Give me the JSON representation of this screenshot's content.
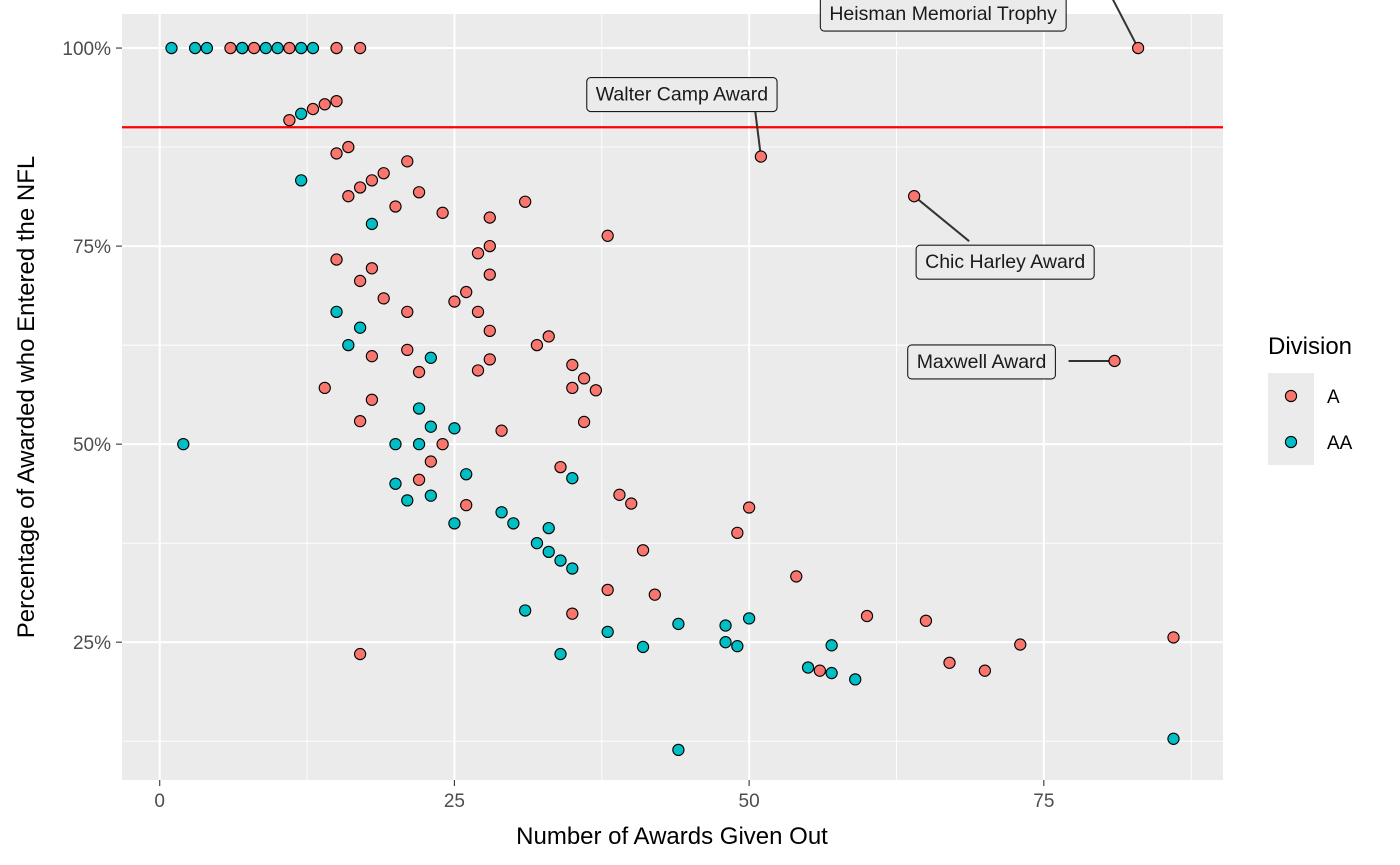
{
  "chart_data": {
    "type": "scatter",
    "xlabel": "Number of Awards Given Out",
    "ylabel": "Percentage of Awarded who Entered the NFL",
    "xlim": [
      -3.2,
      90.2
    ],
    "ylim": [
      0.076,
      1.043
    ],
    "x_ticks": [
      0,
      25,
      50,
      75
    ],
    "x_tick_labels": [
      "0",
      "25",
      "50",
      "75"
    ],
    "y_ticks": [
      0.25,
      0.5,
      0.75,
      1.0
    ],
    "y_tick_labels": [
      "25%",
      "50%",
      "75%",
      "100%"
    ],
    "grid": true,
    "reference_line": {
      "y": 0.9,
      "color": "#ff0000"
    },
    "legend": {
      "title": "Division",
      "position": "right",
      "entries": [
        {
          "label": "A",
          "color": "#F8766D"
        },
        {
          "label": "AA",
          "color": "#00BFC4"
        }
      ]
    },
    "series": [
      {
        "name": "A",
        "color": "#F8766D",
        "points": [
          [
            6,
            1.0
          ],
          [
            7,
            1.0
          ],
          [
            8,
            1.0
          ],
          [
            11,
            1.0
          ],
          [
            15,
            1.0
          ],
          [
            17,
            1.0
          ],
          [
            83,
            1.0
          ],
          [
            11,
            0.909
          ],
          [
            13,
            0.923
          ],
          [
            14,
            0.929
          ],
          [
            15,
            0.933
          ],
          [
            15,
            0.867
          ],
          [
            16,
            0.875
          ],
          [
            51,
            0.863
          ],
          [
            16,
            0.813
          ],
          [
            17,
            0.824
          ],
          [
            18,
            0.833
          ],
          [
            19,
            0.842
          ],
          [
            21,
            0.857
          ],
          [
            22,
            0.818
          ],
          [
            20,
            0.8
          ],
          [
            24,
            0.792
          ],
          [
            28,
            0.786
          ],
          [
            31,
            0.806
          ],
          [
            64,
            0.813
          ],
          [
            38,
            0.763
          ],
          [
            28,
            0.75
          ],
          [
            27,
            0.741
          ],
          [
            18,
            0.722
          ],
          [
            15,
            0.733
          ],
          [
            28,
            0.714
          ],
          [
            17,
            0.706
          ],
          [
            26,
            0.692
          ],
          [
            19,
            0.684
          ],
          [
            25,
            0.68
          ],
          [
            21,
            0.667
          ],
          [
            27,
            0.667
          ],
          [
            28,
            0.643
          ],
          [
            33,
            0.636
          ],
          [
            32,
            0.625
          ],
          [
            21,
            0.619
          ],
          [
            18,
            0.611
          ],
          [
            28,
            0.607
          ],
          [
            35,
            0.6
          ],
          [
            81,
            0.605
          ],
          [
            22,
            0.591
          ],
          [
            27,
            0.593
          ],
          [
            36,
            0.583
          ],
          [
            14,
            0.571
          ],
          [
            35,
            0.571
          ],
          [
            37,
            0.568
          ],
          [
            18,
            0.556
          ],
          [
            17,
            0.529
          ],
          [
            36,
            0.528
          ],
          [
            29,
            0.517
          ],
          [
            24,
            0.5
          ],
          [
            23,
            0.478
          ],
          [
            34,
            0.471
          ],
          [
            22,
            0.455
          ],
          [
            39,
            0.436
          ],
          [
            40,
            0.425
          ],
          [
            26,
            0.423
          ],
          [
            50,
            0.42
          ],
          [
            49,
            0.388
          ],
          [
            41,
            0.366
          ],
          [
            54,
            0.333
          ],
          [
            38,
            0.316
          ],
          [
            42,
            0.31
          ],
          [
            35,
            0.286
          ],
          [
            60,
            0.283
          ],
          [
            65,
            0.277
          ],
          [
            86,
            0.256
          ],
          [
            73,
            0.247
          ],
          [
            17,
            0.235
          ],
          [
            67,
            0.224
          ],
          [
            56,
            0.214
          ],
          [
            70,
            0.214
          ]
        ]
      },
      {
        "name": "AA",
        "color": "#00BFC4",
        "points": [
          [
            1,
            1.0
          ],
          [
            3,
            1.0
          ],
          [
            4,
            1.0
          ],
          [
            7,
            1.0
          ],
          [
            9,
            1.0
          ],
          [
            10,
            1.0
          ],
          [
            12,
            1.0
          ],
          [
            13,
            1.0
          ],
          [
            12,
            0.917
          ],
          [
            12,
            0.833
          ],
          [
            18,
            0.778
          ],
          [
            15,
            0.667
          ],
          [
            17,
            0.647
          ],
          [
            16,
            0.625
          ],
          [
            23,
            0.609
          ],
          [
            22,
            0.545
          ],
          [
            23,
            0.522
          ],
          [
            25,
            0.52
          ],
          [
            2,
            0.5
          ],
          [
            20,
            0.5
          ],
          [
            22,
            0.5
          ],
          [
            26,
            0.462
          ],
          [
            35,
            0.457
          ],
          [
            20,
            0.45
          ],
          [
            23,
            0.435
          ],
          [
            21,
            0.429
          ],
          [
            29,
            0.414
          ],
          [
            25,
            0.4
          ],
          [
            30,
            0.4
          ],
          [
            33,
            0.394
          ],
          [
            32,
            0.375
          ],
          [
            33,
            0.364
          ],
          [
            34,
            0.353
          ],
          [
            35,
            0.343
          ],
          [
            31,
            0.29
          ],
          [
            50,
            0.28
          ],
          [
            44,
            0.273
          ],
          [
            48,
            0.271
          ],
          [
            38,
            0.263
          ],
          [
            48,
            0.25
          ],
          [
            57,
            0.246
          ],
          [
            41,
            0.244
          ],
          [
            49,
            0.245
          ],
          [
            34,
            0.235
          ],
          [
            55,
            0.218
          ],
          [
            57,
            0.211
          ],
          [
            59,
            0.203
          ],
          [
            86,
            0.128
          ],
          [
            44,
            0.114
          ]
        ]
      }
    ],
    "annotations": [
      {
        "text": "Walter Camp Award",
        "x": 51,
        "y": 0.863
      },
      {
        "text": "Heisman Memorial Trophy",
        "x": 83,
        "y": 1.0
      },
      {
        "text": "Chic Harley Award",
        "x": 64,
        "y": 0.813
      },
      {
        "text": "Maxwell Award",
        "x": 81,
        "y": 0.605
      }
    ]
  }
}
